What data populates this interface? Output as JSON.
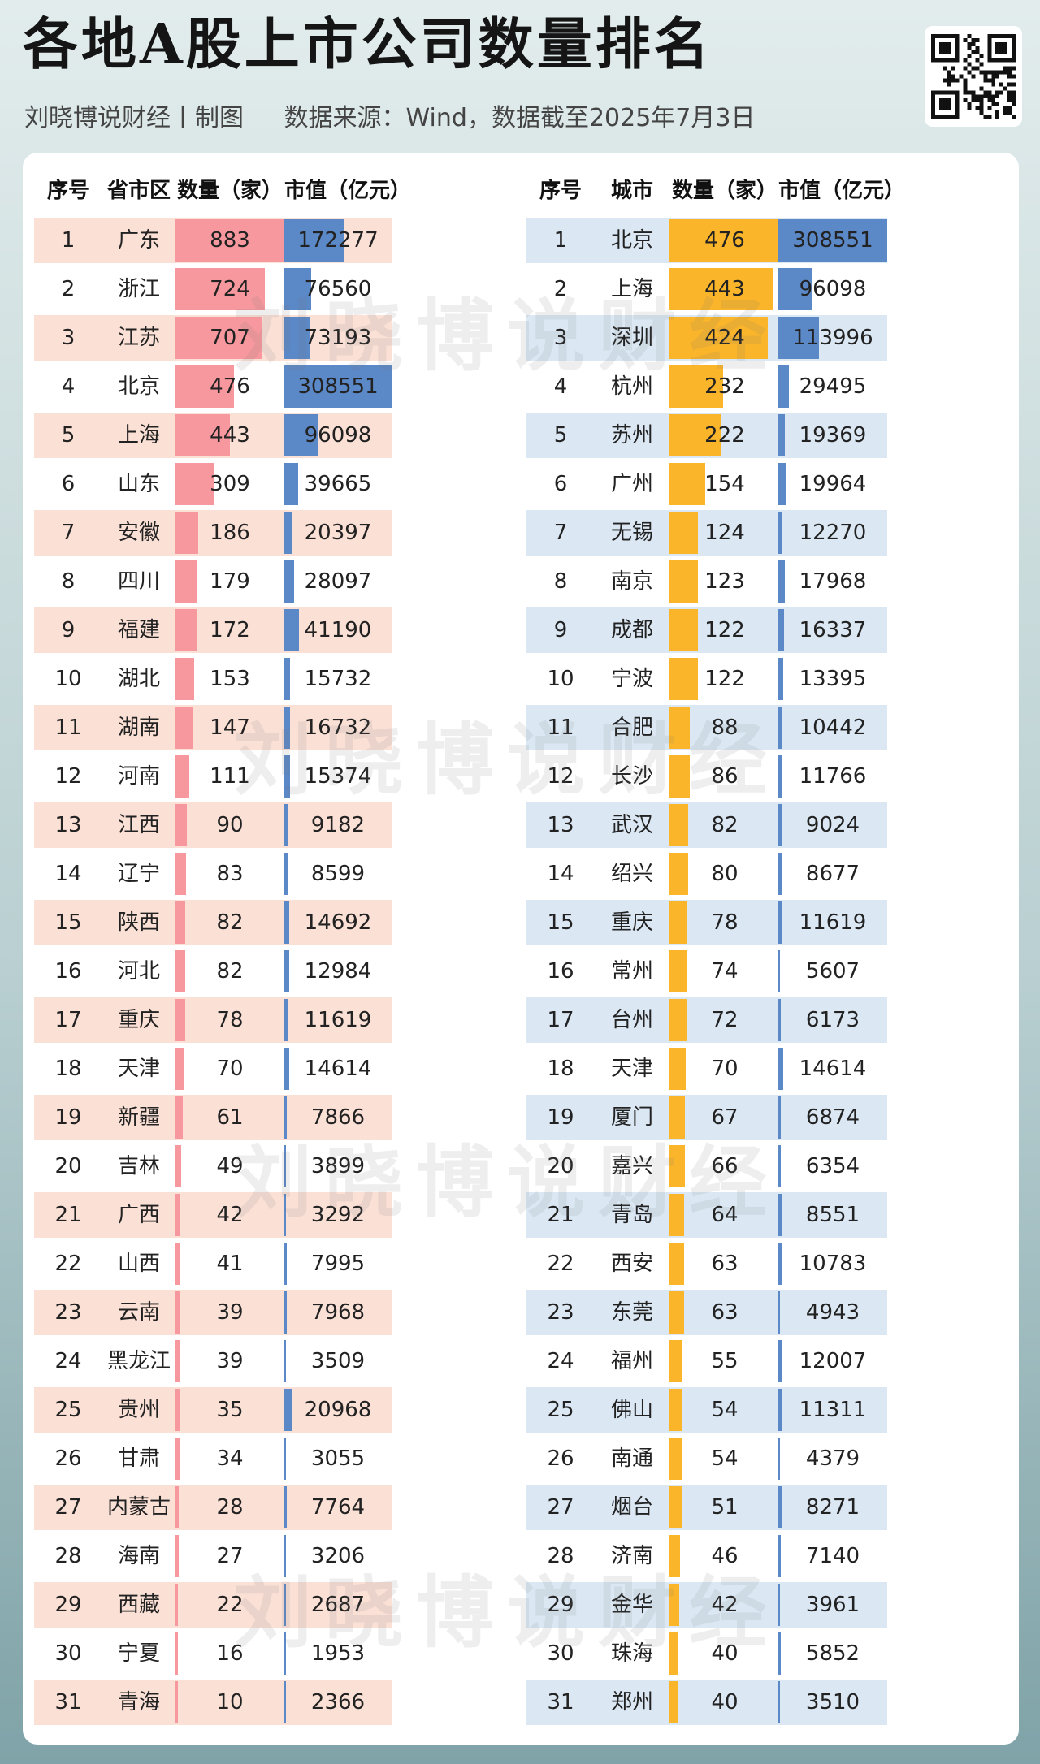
{
  "title": "各地A股上市公司数量排名",
  "subtitle": {
    "credit": "刘晓博说财经丨制图",
    "source": "数据来源：Wind，数据截至2025年7月3日"
  },
  "watermark": "刘晓博说财经",
  "colors": {
    "province_row": "#fbe0d6",
    "city_row": "#dbe8f4",
    "count_bar_left": "#f7989e",
    "count_bar_right": "#fbb52a",
    "value_bar": "#5b88c6"
  },
  "chart_data": [
    {
      "type": "table",
      "headers": [
        "序号",
        "省市区",
        "数量（家）",
        "市值（亿元）"
      ],
      "rows": [
        {
          "rank": "1",
          "name": "广东",
          "count": 883,
          "value": 172277
        },
        {
          "rank": "2",
          "name": "浙江",
          "count": 724,
          "value": 76560
        },
        {
          "rank": "3",
          "name": "江苏",
          "count": 707,
          "value": 73193
        },
        {
          "rank": "4",
          "name": "北京",
          "count": 476,
          "value": 308551
        },
        {
          "rank": "5",
          "name": "上海",
          "count": 443,
          "value": 96098
        },
        {
          "rank": "6",
          "name": "山东",
          "count": 309,
          "value": 39665
        },
        {
          "rank": "7",
          "name": "安徽",
          "count": 186,
          "value": 20397
        },
        {
          "rank": "8",
          "name": "四川",
          "count": 179,
          "value": 28097
        },
        {
          "rank": "9",
          "name": "福建",
          "count": 172,
          "value": 41190
        },
        {
          "rank": "10",
          "name": "湖北",
          "count": 153,
          "value": 15732
        },
        {
          "rank": "11",
          "name": "湖南",
          "count": 147,
          "value": 16732
        },
        {
          "rank": "12",
          "name": "河南",
          "count": 111,
          "value": 15374
        },
        {
          "rank": "13",
          "name": "江西",
          "count": 90,
          "value": 9182
        },
        {
          "rank": "14",
          "name": "辽宁",
          "count": 83,
          "value": 8599
        },
        {
          "rank": "15",
          "name": "陕西",
          "count": 82,
          "value": 14692
        },
        {
          "rank": "16",
          "name": "河北",
          "count": 82,
          "value": 12984
        },
        {
          "rank": "17",
          "name": "重庆",
          "count": 78,
          "value": 11619
        },
        {
          "rank": "18",
          "name": "天津",
          "count": 70,
          "value": 14614
        },
        {
          "rank": "19",
          "name": "新疆",
          "count": 61,
          "value": 7866
        },
        {
          "rank": "20",
          "name": "吉林",
          "count": 49,
          "value": 3899
        },
        {
          "rank": "21",
          "name": "广西",
          "count": 42,
          "value": 3292
        },
        {
          "rank": "22",
          "name": "山西",
          "count": 41,
          "value": 7995
        },
        {
          "rank": "23",
          "name": "云南",
          "count": 39,
          "value": 7968
        },
        {
          "rank": "24",
          "name": "黑龙江",
          "count": 39,
          "value": 3509
        },
        {
          "rank": "25",
          "name": "贵州",
          "count": 35,
          "value": 20968
        },
        {
          "rank": "26",
          "name": "甘肃",
          "count": 34,
          "value": 3055
        },
        {
          "rank": "27",
          "name": "内蒙古",
          "count": 28,
          "value": 7764
        },
        {
          "rank": "28",
          "name": "海南",
          "count": 27,
          "value": 3206
        },
        {
          "rank": "29",
          "name": "西藏",
          "count": 22,
          "value": 2687
        },
        {
          "rank": "30",
          "name": "宁夏",
          "count": 16,
          "value": 1953
        },
        {
          "rank": "31",
          "name": "青海",
          "count": 10,
          "value": 2366
        }
      ]
    },
    {
      "type": "table",
      "headers": [
        "序号",
        "城市",
        "数量（家）",
        "市值（亿元）"
      ],
      "rows": [
        {
          "rank": "1",
          "name": "北京",
          "count": 476,
          "value": 308551
        },
        {
          "rank": "2",
          "name": "上海",
          "count": 443,
          "value": 96098
        },
        {
          "rank": "3",
          "name": "深圳",
          "count": 424,
          "value": 113996
        },
        {
          "rank": "4",
          "name": "杭州",
          "count": 232,
          "value": 29495
        },
        {
          "rank": "5",
          "name": "苏州",
          "count": 222,
          "value": 19369
        },
        {
          "rank": "6",
          "name": "广州",
          "count": 154,
          "value": 19964
        },
        {
          "rank": "7",
          "name": "无锡",
          "count": 124,
          "value": 12270
        },
        {
          "rank": "8",
          "name": "南京",
          "count": 123,
          "value": 17968
        },
        {
          "rank": "9",
          "name": "成都",
          "count": 122,
          "value": 16337
        },
        {
          "rank": "10",
          "name": "宁波",
          "count": 122,
          "value": 13395
        },
        {
          "rank": "11",
          "name": "合肥",
          "count": 88,
          "value": 10442
        },
        {
          "rank": "12",
          "name": "长沙",
          "count": 86,
          "value": 11766
        },
        {
          "rank": "13",
          "name": "武汉",
          "count": 82,
          "value": 9024
        },
        {
          "rank": "14",
          "name": "绍兴",
          "count": 80,
          "value": 8677
        },
        {
          "rank": "15",
          "name": "重庆",
          "count": 78,
          "value": 11619
        },
        {
          "rank": "16",
          "name": "常州",
          "count": 74,
          "value": 5607
        },
        {
          "rank": "17",
          "name": "台州",
          "count": 72,
          "value": 6173
        },
        {
          "rank": "18",
          "name": "天津",
          "count": 70,
          "value": 14614
        },
        {
          "rank": "19",
          "name": "厦门",
          "count": 67,
          "value": 6874
        },
        {
          "rank": "20",
          "name": "嘉兴",
          "count": 66,
          "value": 6354
        },
        {
          "rank": "21",
          "name": "青岛",
          "count": 64,
          "value": 8551
        },
        {
          "rank": "22",
          "name": "西安",
          "count": 63,
          "value": 10783
        },
        {
          "rank": "23",
          "name": "东莞",
          "count": 63,
          "value": 4943
        },
        {
          "rank": "24",
          "name": "福州",
          "count": 55,
          "value": 12007
        },
        {
          "rank": "25",
          "name": "佛山",
          "count": 54,
          "value": 11311
        },
        {
          "rank": "26",
          "name": "南通",
          "count": 54,
          "value": 4379
        },
        {
          "rank": "27",
          "name": "烟台",
          "count": 51,
          "value": 8271
        },
        {
          "rank": "28",
          "name": "济南",
          "count": 46,
          "value": 7140
        },
        {
          "rank": "29",
          "name": "金华",
          "count": 42,
          "value": 3961
        },
        {
          "rank": "30",
          "name": "珠海",
          "count": 40,
          "value": 5852
        },
        {
          "rank": "31",
          "name": "郑州",
          "count": 40,
          "value": 3510
        }
      ]
    }
  ]
}
